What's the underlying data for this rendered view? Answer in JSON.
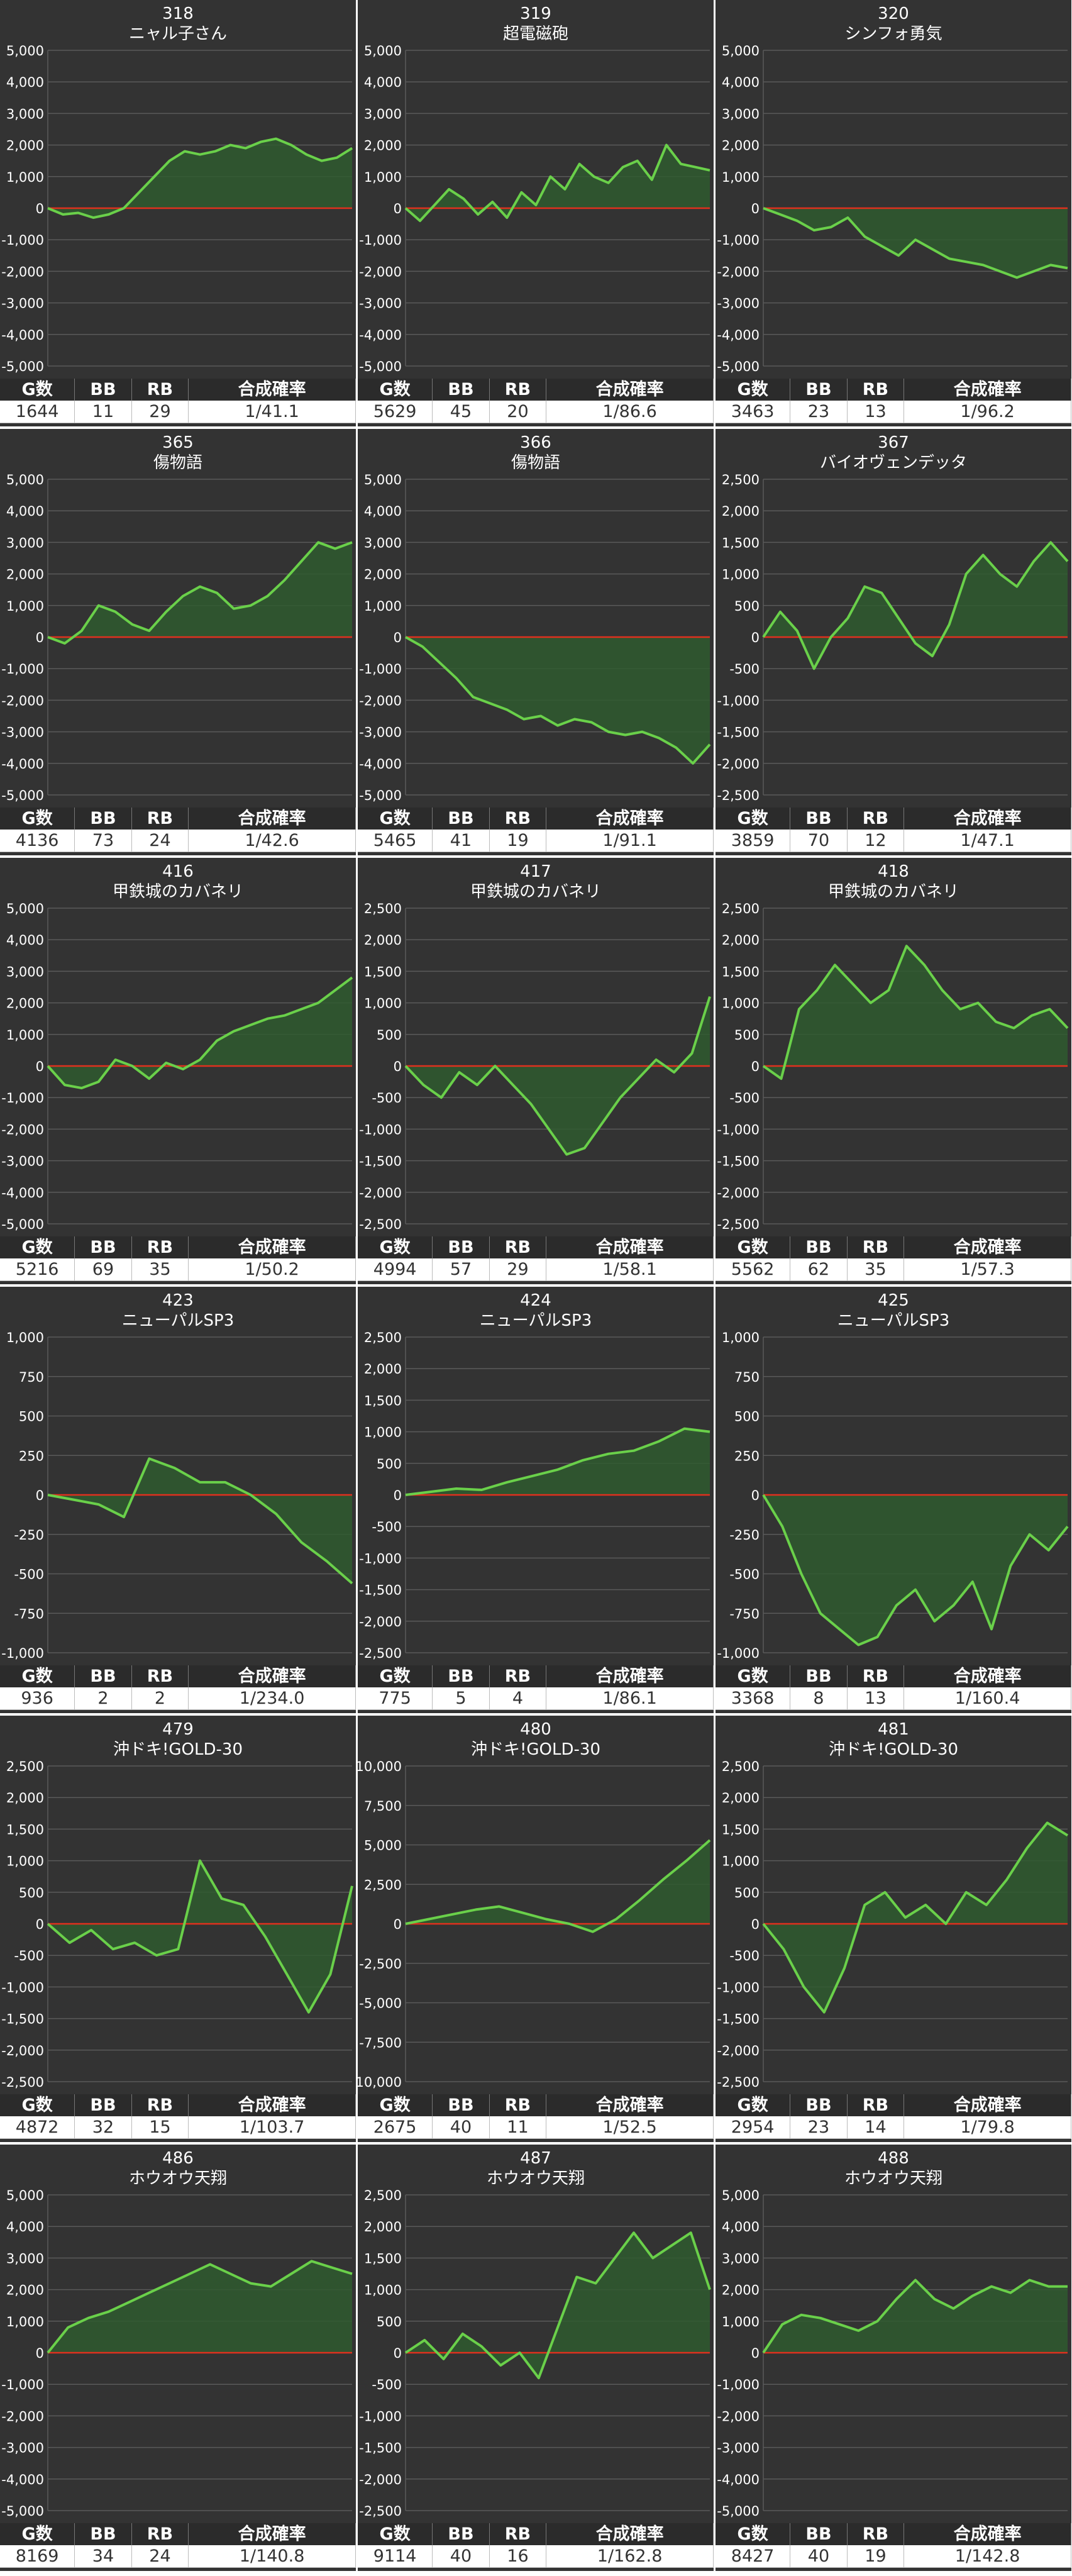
{
  "table_headers": [
    "G数",
    "BB",
    "RB",
    "合成確率"
  ],
  "colors": {
    "panel_bg": "#333333",
    "grid": "#5a5a5a",
    "zero_line": "#e0301e",
    "series_line": "#6ad04a",
    "fill": "#2f5a2f",
    "text": "#ffffff"
  },
  "chart_data": [
    {
      "type": "area",
      "title": "318",
      "subtitle": "ニャル子さん",
      "ylim": [
        -5000,
        5000
      ],
      "yticks": [
        -5000,
        -4000,
        -3000,
        -2000,
        -1000,
        0,
        1000,
        2000,
        3000,
        4000,
        5000
      ],
      "ytick_labels": [
        "-5,000",
        "-4,000",
        "-3,000",
        "-2,000",
        "-1,000",
        "0",
        "1,000",
        "2,000",
        "3,000",
        "4,000",
        "5,000"
      ],
      "y": [
        0,
        -200,
        -150,
        -300,
        -200,
        0,
        500,
        1000,
        1500,
        1800,
        1700,
        1800,
        2000,
        1900,
        2100,
        2200,
        2000,
        1700,
        1500,
        1600,
        1900
      ],
      "stats": [
        "1644",
        "11",
        "29",
        "1/41.1"
      ]
    },
    {
      "type": "area",
      "title": "319",
      "subtitle": "超電磁砲",
      "ylim": [
        -5000,
        5000
      ],
      "yticks": [
        -5000,
        -4000,
        -3000,
        -2000,
        -1000,
        0,
        1000,
        2000,
        3000,
        4000,
        5000
      ],
      "ytick_labels": [
        "-5,000",
        "-4,000",
        "-3,000",
        "-2,000",
        "-1,000",
        "0",
        "1,000",
        "2,000",
        "3,000",
        "4,000",
        "5,000"
      ],
      "y": [
        0,
        -400,
        100,
        600,
        300,
        -200,
        200,
        -300,
        500,
        100,
        1000,
        600,
        1400,
        1000,
        800,
        1300,
        1500,
        900,
        2000,
        1400,
        1300,
        1200
      ],
      "stats": [
        "5629",
        "45",
        "20",
        "1/86.6"
      ]
    },
    {
      "type": "area",
      "title": "320",
      "subtitle": "シンフォ勇気",
      "ylim": [
        -5000,
        5000
      ],
      "yticks": [
        -5000,
        -4000,
        -3000,
        -2000,
        -1000,
        0,
        1000,
        2000,
        3000,
        4000,
        5000
      ],
      "ytick_labels": [
        "-5,000",
        "-4,000",
        "-3,000",
        "-2,000",
        "-1,000",
        "0",
        "1,000",
        "2,000",
        "3,000",
        "4,000",
        "5,000"
      ],
      "y": [
        0,
        -200,
        -400,
        -700,
        -600,
        -300,
        -900,
        -1200,
        -1500,
        -1000,
        -1300,
        -1600,
        -1700,
        -1800,
        -2000,
        -2200,
        -2000,
        -1800,
        -1900
      ],
      "stats": [
        "3463",
        "23",
        "13",
        "1/96.2"
      ]
    },
    {
      "type": "area",
      "title": "365",
      "subtitle": "傷物語",
      "ylim": [
        -5000,
        5000
      ],
      "yticks": [
        -5000,
        -4000,
        -3000,
        -2000,
        -1000,
        0,
        1000,
        2000,
        3000,
        4000,
        5000
      ],
      "ytick_labels": [
        "-5,000",
        "-4,000",
        "-3,000",
        "-2,000",
        "-1,000",
        "0",
        "1,000",
        "2,000",
        "3,000",
        "4,000",
        "5,000"
      ],
      "y": [
        0,
        -200,
        200,
        1000,
        800,
        400,
        200,
        800,
        1300,
        1600,
        1400,
        900,
        1000,
        1300,
        1800,
        2400,
        3000,
        2800,
        3000
      ],
      "stats": [
        "4136",
        "73",
        "24",
        "1/42.6"
      ]
    },
    {
      "type": "area",
      "title": "366",
      "subtitle": "傷物語",
      "ylim": [
        -5000,
        5000
      ],
      "yticks": [
        -5000,
        -4000,
        -3000,
        -2000,
        -1000,
        0,
        1000,
        2000,
        3000,
        4000,
        5000
      ],
      "ytick_labels": [
        "-5,000",
        "-4,000",
        "-3,000",
        "-2,000",
        "-1,000",
        "0",
        "1,000",
        "2,000",
        "3,000",
        "4,000",
        "5,000"
      ],
      "y": [
        0,
        -300,
        -800,
        -1300,
        -1900,
        -2100,
        -2300,
        -2600,
        -2500,
        -2800,
        -2600,
        -2700,
        -3000,
        -3100,
        -3000,
        -3200,
        -3500,
        -4000,
        -3400
      ],
      "stats": [
        "5465",
        "41",
        "19",
        "1/91.1"
      ]
    },
    {
      "type": "area",
      "title": "367",
      "subtitle": "バイオヴェンデッタ",
      "ylim": [
        -2500,
        2500
      ],
      "yticks": [
        -2500,
        -2000,
        -1500,
        -1000,
        -500,
        0,
        500,
        1000,
        1500,
        2000,
        2500
      ],
      "ytick_labels": [
        "-2,500",
        "-2,000",
        "-1,500",
        "-1,000",
        "-500",
        "0",
        "500",
        "1,000",
        "1,500",
        "2,000",
        "2,500"
      ],
      "y": [
        0,
        400,
        100,
        -500,
        0,
        300,
        800,
        700,
        300,
        -100,
        -300,
        200,
        1000,
        1300,
        1000,
        800,
        1200,
        1500,
        1200
      ],
      "stats": [
        "3859",
        "70",
        "12",
        "1/47.1"
      ]
    },
    {
      "type": "area",
      "title": "416",
      "subtitle": "甲鉄城のカバネリ",
      "ylim": [
        -5000,
        5000
      ],
      "yticks": [
        -5000,
        -4000,
        -3000,
        -2000,
        -1000,
        0,
        1000,
        2000,
        3000,
        4000,
        5000
      ],
      "ytick_labels": [
        "-5,000",
        "-4,000",
        "-3,000",
        "-2,000",
        "-1,000",
        "0",
        "1,000",
        "2,000",
        "3,000",
        "4,000",
        "5,000"
      ],
      "y": [
        0,
        -600,
        -700,
        -500,
        200,
        0,
        -400,
        100,
        -100,
        200,
        800,
        1100,
        1300,
        1500,
        1600,
        1800,
        2000,
        2400,
        2800
      ],
      "stats": [
        "5216",
        "69",
        "35",
        "1/50.2"
      ]
    },
    {
      "type": "area",
      "title": "417",
      "subtitle": "甲鉄城のカバネリ",
      "ylim": [
        -2500,
        2500
      ],
      "yticks": [
        -2500,
        -2000,
        -1500,
        -1000,
        -500,
        0,
        500,
        1000,
        1500,
        2000,
        2500
      ],
      "ytick_labels": [
        "-2,500",
        "-2,000",
        "-1,500",
        "-1,000",
        "-500",
        "0",
        "500",
        "1,000",
        "1,500",
        "2,000",
        "2,500"
      ],
      "y": [
        0,
        -300,
        -500,
        -100,
        -300,
        0,
        -300,
        -600,
        -1000,
        -1400,
        -1300,
        -900,
        -500,
        -200,
        100,
        -100,
        200,
        1100
      ],
      "stats": [
        "4994",
        "57",
        "29",
        "1/58.1"
      ]
    },
    {
      "type": "area",
      "title": "418",
      "subtitle": "甲鉄城のカバネリ",
      "ylim": [
        -2500,
        2500
      ],
      "yticks": [
        -2500,
        -2000,
        -1500,
        -1000,
        -500,
        0,
        500,
        1000,
        1500,
        2000,
        2500
      ],
      "ytick_labels": [
        "-2,500",
        "-2,000",
        "-1,500",
        "-1,000",
        "-500",
        "0",
        "500",
        "1,000",
        "1,500",
        "2,000",
        "2,500"
      ],
      "y": [
        0,
        -200,
        900,
        1200,
        1600,
        1300,
        1000,
        1200,
        1900,
        1600,
        1200,
        900,
        1000,
        700,
        600,
        800,
        900,
        600
      ],
      "stats": [
        "5562",
        "62",
        "35",
        "1/57.3"
      ]
    },
    {
      "type": "area",
      "title": "423",
      "subtitle": "ニューパルSP3",
      "ylim": [
        -1000,
        1000
      ],
      "yticks": [
        -1000,
        -750,
        -500,
        -250,
        0,
        250,
        500,
        750,
        1000
      ],
      "ytick_labels": [
        "-1,000",
        "-750",
        "-500",
        "-250",
        "0",
        "250",
        "500",
        "750",
        "1,000"
      ],
      "y": [
        0,
        -30,
        -60,
        -140,
        230,
        170,
        80,
        80,
        0,
        -120,
        -300,
        -420,
        -560
      ],
      "stats": [
        "936",
        "2",
        "2",
        "1/234.0"
      ]
    },
    {
      "type": "area",
      "title": "424",
      "subtitle": "ニューパルSP3",
      "ylim": [
        -2500,
        2500
      ],
      "yticks": [
        -2500,
        -2000,
        -1500,
        -1000,
        -500,
        0,
        500,
        1000,
        1500,
        2000,
        2500
      ],
      "ytick_labels": [
        "-2,500",
        "-2,000",
        "-1,500",
        "-1,000",
        "-500",
        "0",
        "500",
        "1,000",
        "1,500",
        "2,000",
        "2,500"
      ],
      "y": [
        0,
        50,
        100,
        80,
        200,
        300,
        400,
        550,
        650,
        700,
        850,
        1050,
        1000
      ],
      "stats": [
        "775",
        "5",
        "4",
        "1/86.1"
      ]
    },
    {
      "type": "area",
      "title": "425",
      "subtitle": "ニューパルSP3",
      "ylim": [
        -1000,
        1000
      ],
      "yticks": [
        -1000,
        -750,
        -500,
        -250,
        0,
        250,
        500,
        750,
        1000
      ],
      "ytick_labels": [
        "-1,000",
        "-750",
        "-500",
        "-250",
        "0",
        "250",
        "500",
        "750",
        "1,000"
      ],
      "y": [
        0,
        -200,
        -500,
        -750,
        -850,
        -950,
        -900,
        -700,
        -600,
        -800,
        -700,
        -550,
        -850,
        -450,
        -250,
        -350,
        -200
      ],
      "stats": [
        "3368",
        "8",
        "13",
        "1/160.4"
      ]
    },
    {
      "type": "area",
      "title": "479",
      "subtitle": "沖ドキ!GOLD-30",
      "ylim": [
        -2500,
        2500
      ],
      "yticks": [
        -2500,
        -2000,
        -1500,
        -1000,
        -500,
        0,
        500,
        1000,
        1500,
        2000,
        2500
      ],
      "ytick_labels": [
        "-2,500",
        "-2,000",
        "-1,500",
        "-1,000",
        "-500",
        "0",
        "500",
        "1,000",
        "1,500",
        "2,000",
        "2,500"
      ],
      "y": [
        0,
        -300,
        -100,
        -400,
        -300,
        -500,
        -400,
        1000,
        400,
        300,
        -200,
        -800,
        -1400,
        -800,
        600
      ],
      "stats": [
        "4872",
        "32",
        "15",
        "1/103.7"
      ]
    },
    {
      "type": "area",
      "title": "480",
      "subtitle": "沖ドキ!GOLD-30",
      "ylim": [
        -10000,
        10000
      ],
      "yticks": [
        -10000,
        -7500,
        -5000,
        -2500,
        0,
        2500,
        5000,
        7500,
        10000
      ],
      "ytick_labels": [
        "-10,000",
        "-7,500",
        "-5,000",
        "-2,500",
        "0",
        "2,500",
        "5,000",
        "7,500",
        "10,000"
      ],
      "y": [
        0,
        300,
        600,
        900,
        1100,
        700,
        300,
        0,
        -500,
        300,
        1500,
        2800,
        4000,
        5300
      ],
      "stats": [
        "2675",
        "40",
        "11",
        "1/52.5"
      ]
    },
    {
      "type": "area",
      "title": "481",
      "subtitle": "沖ドキ!GOLD-30",
      "ylim": [
        -2500,
        2500
      ],
      "yticks": [
        -2500,
        -2000,
        -1500,
        -1000,
        -500,
        0,
        500,
        1000,
        1500,
        2000,
        2500
      ],
      "ytick_labels": [
        "-2,500",
        "-2,000",
        "-1,500",
        "-1,000",
        "-500",
        "0",
        "500",
        "1,000",
        "1,500",
        "2,000",
        "2,500"
      ],
      "y": [
        0,
        -400,
        -1000,
        -1400,
        -700,
        300,
        500,
        100,
        300,
        0,
        500,
        300,
        700,
        1200,
        1600,
        1400
      ],
      "stats": [
        "2954",
        "23",
        "14",
        "1/79.8"
      ]
    },
    {
      "type": "area",
      "title": "486",
      "subtitle": "ホウオウ天翔",
      "ylim": [
        -5000,
        5000
      ],
      "yticks": [
        -5000,
        -4000,
        -3000,
        -2000,
        -1000,
        0,
        1000,
        2000,
        3000,
        4000,
        5000
      ],
      "ytick_labels": [
        "-5,000",
        "-4,000",
        "-3,000",
        "-2,000",
        "-1,000",
        "0",
        "1,000",
        "2,000",
        "3,000",
        "4,000",
        "5,000"
      ],
      "y": [
        0,
        800,
        1100,
        1300,
        1600,
        1900,
        2200,
        2500,
        2800,
        2500,
        2200,
        2100,
        2500,
        2900,
        2700,
        2500
      ],
      "stats": [
        "8169",
        "34",
        "24",
        "1/140.8"
      ]
    },
    {
      "type": "area",
      "title": "487",
      "subtitle": "ホウオウ天翔",
      "ylim": [
        -2500,
        2500
      ],
      "yticks": [
        -2500,
        -2000,
        -1500,
        -1000,
        -500,
        0,
        500,
        1000,
        1500,
        2000,
        2500
      ],
      "ytick_labels": [
        "-2,500",
        "-2,000",
        "-1,500",
        "-1,000",
        "-500",
        "0",
        "500",
        "1,000",
        "1,500",
        "2,000",
        "2,500"
      ],
      "y": [
        0,
        200,
        -100,
        300,
        100,
        -200,
        0,
        -400,
        400,
        1200,
        1100,
        1500,
        1900,
        1500,
        1700,
        1900,
        1000
      ],
      "stats": [
        "9114",
        "40",
        "16",
        "1/162.8"
      ]
    },
    {
      "type": "area",
      "title": "488",
      "subtitle": "ホウオウ天翔",
      "ylim": [
        -5000,
        5000
      ],
      "yticks": [
        -5000,
        -4000,
        -3000,
        -2000,
        -1000,
        0,
        1000,
        2000,
        3000,
        4000,
        5000
      ],
      "ytick_labels": [
        "-5,000",
        "-4,000",
        "-3,000",
        "-2,000",
        "-1,000",
        "0",
        "1,000",
        "2,000",
        "3,000",
        "4,000",
        "5,000"
      ],
      "y": [
        0,
        900,
        1200,
        1100,
        900,
        700,
        1000,
        1700,
        2300,
        1700,
        1400,
        1800,
        2100,
        1900,
        2300,
        2100,
        2100
      ],
      "stats": [
        "8427",
        "40",
        "19",
        "1/142.8"
      ]
    }
  ]
}
